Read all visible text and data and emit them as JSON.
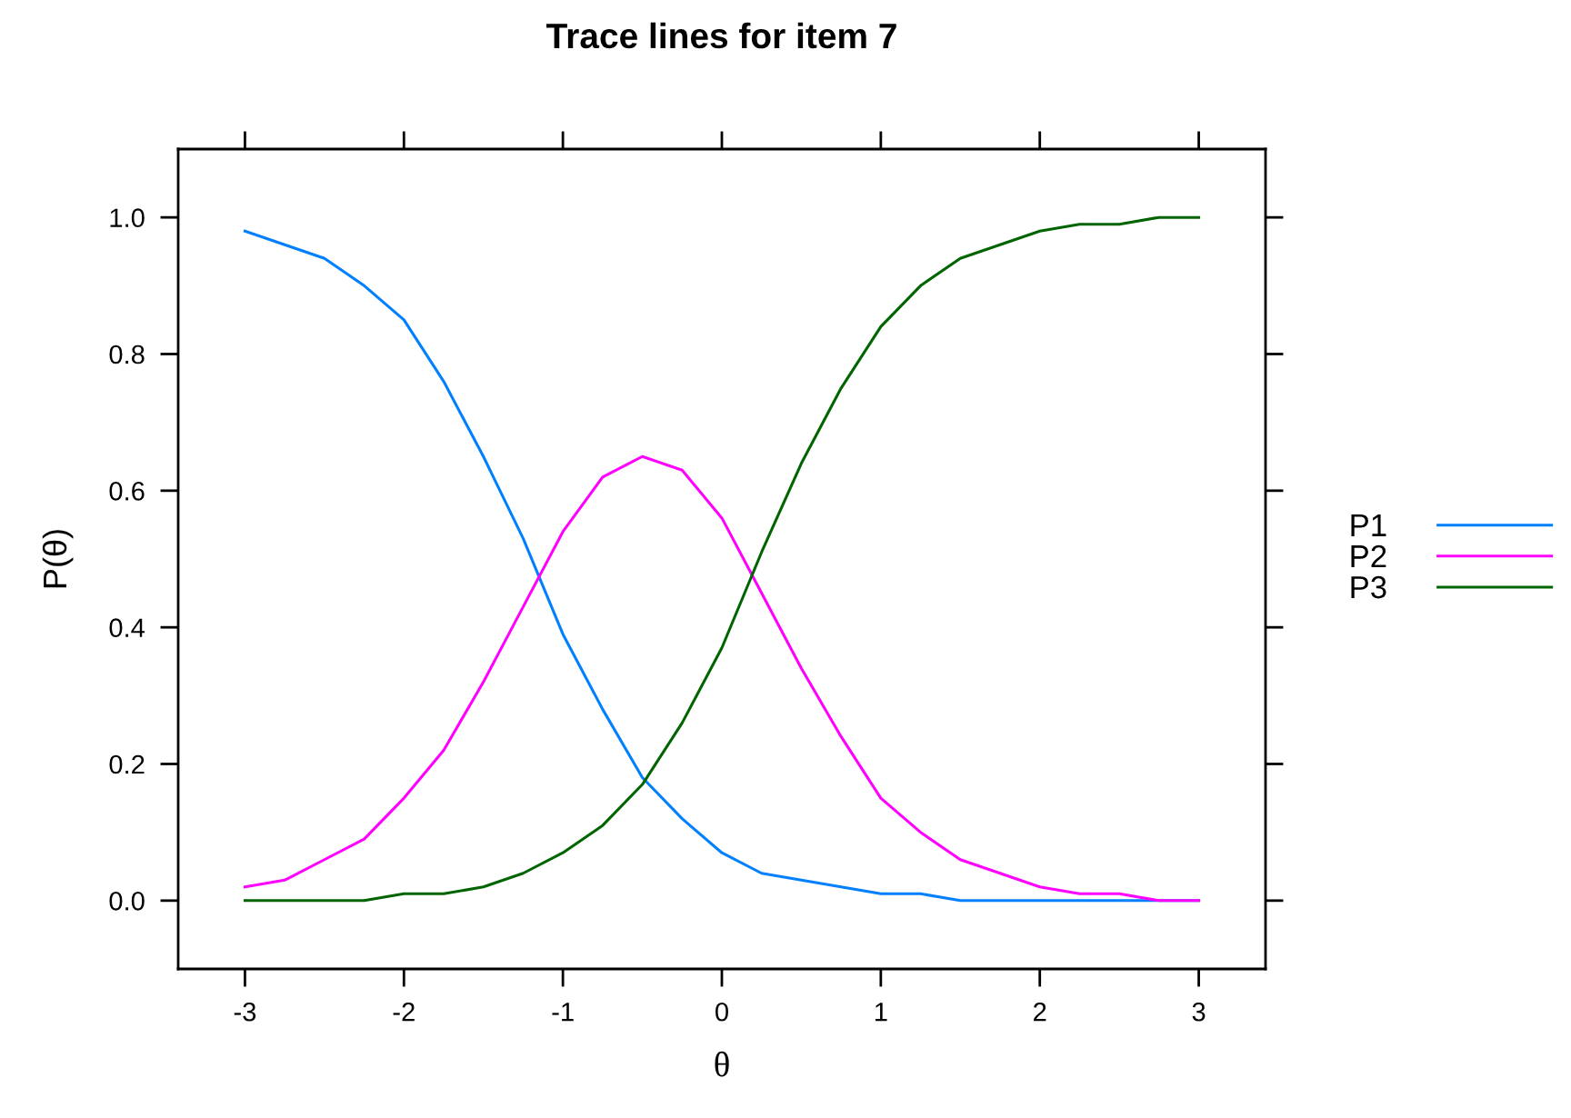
{
  "chart_data": {
    "type": "line",
    "title": "Trace lines for item 7",
    "xlabel": "θ",
    "ylabel": "P(θ)",
    "x": [
      -3,
      -2.75,
      -2.5,
      -2.25,
      -2,
      -1.75,
      -1.5,
      -1.25,
      -1,
      -0.75,
      -0.5,
      -0.25,
      0,
      0.25,
      0.5,
      0.75,
      1,
      1.25,
      1.5,
      1.75,
      2,
      2.25,
      2.5,
      2.75,
      3
    ],
    "series": [
      {
        "name": "P1",
        "color": "#0080ff",
        "values": [
          0.98,
          0.96,
          0.94,
          0.9,
          0.85,
          0.76,
          0.65,
          0.53,
          0.39,
          0.28,
          0.18,
          0.12,
          0.07,
          0.04,
          0.03,
          0.02,
          0.01,
          0.01,
          0.0,
          0.0,
          0.0,
          0.0,
          0.0,
          0.0,
          0.0
        ]
      },
      {
        "name": "P2",
        "color": "#ff00ff",
        "values": [
          0.02,
          0.03,
          0.06,
          0.09,
          0.15,
          0.22,
          0.32,
          0.43,
          0.54,
          0.62,
          0.65,
          0.63,
          0.56,
          0.45,
          0.34,
          0.24,
          0.15,
          0.1,
          0.06,
          0.04,
          0.02,
          0.01,
          0.01,
          0.0,
          0.0
        ]
      },
      {
        "name": "P3",
        "color": "#006400",
        "values": [
          0.0,
          0.0,
          0.0,
          0.0,
          0.01,
          0.01,
          0.02,
          0.04,
          0.07,
          0.11,
          0.17,
          0.26,
          0.37,
          0.51,
          0.64,
          0.75,
          0.84,
          0.9,
          0.94,
          0.96,
          0.98,
          0.99,
          0.99,
          1.0,
          1.0
        ]
      }
    ],
    "xlim": [
      -3.42,
      3.42
    ],
    "ylim": [
      -0.1,
      1.1
    ],
    "xticks": [
      {
        "value": -3,
        "label": "-3"
      },
      {
        "value": -2,
        "label": "-2"
      },
      {
        "value": -1,
        "label": "-1"
      },
      0,
      1,
      2,
      3
    ],
    "yticks": [
      {
        "value": 0,
        "label": "0.0"
      },
      {
        "value": 0.2,
        "label": "0.2"
      },
      {
        "value": 0.4,
        "label": "0.4"
      },
      {
        "value": 0.6,
        "label": "0.6"
      },
      {
        "value": 0.8,
        "label": "0.8"
      },
      {
        "value": 1.0,
        "label": "1.0"
      }
    ],
    "legend": "right",
    "marker": "none",
    "line_style": "solid"
  }
}
